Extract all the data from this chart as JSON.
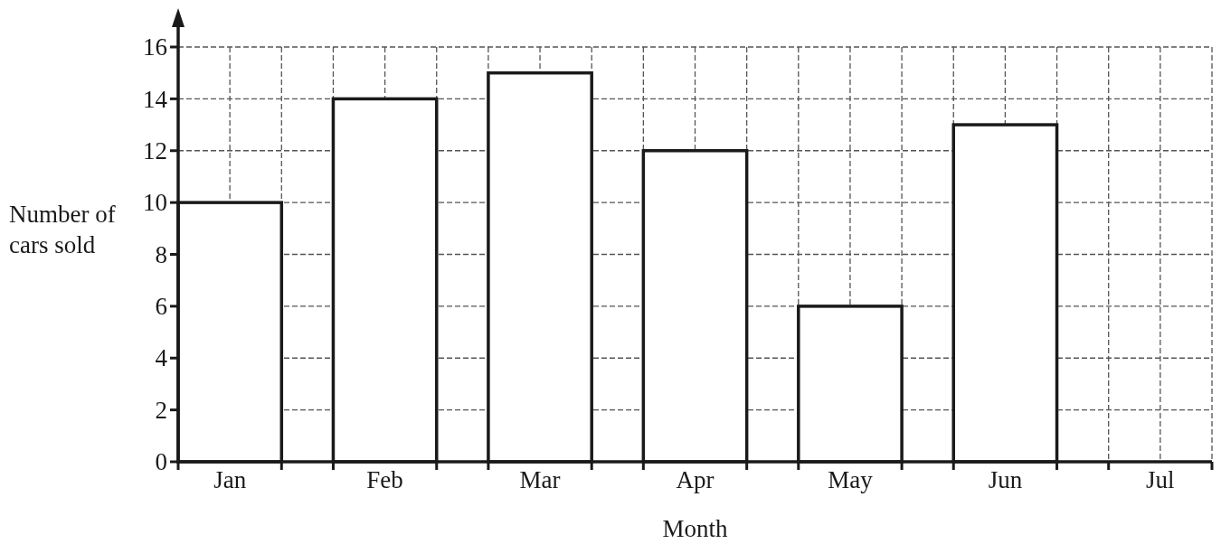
{
  "chart_data": {
    "type": "bar",
    "categories": [
      "Jan",
      "Feb",
      "Mar",
      "Apr",
      "May",
      "Jun",
      "Jul"
    ],
    "values": [
      10,
      14,
      15,
      12,
      6,
      13,
      null
    ],
    "color": "#ffffff",
    "xlabel": "Month",
    "ylabel": "Number of cars sold",
    "ylim": [
      0,
      16
    ],
    "yticks": [
      0,
      2,
      4,
      6,
      8,
      10,
      12,
      14,
      16
    ],
    "grid": true
  }
}
